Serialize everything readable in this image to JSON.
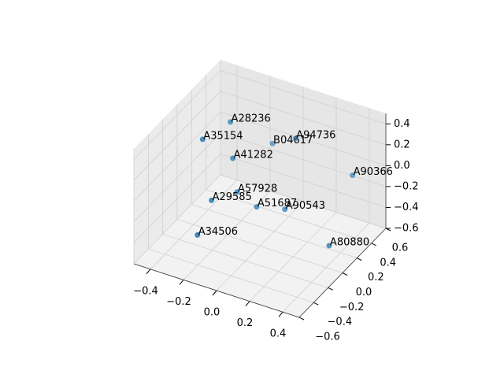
{
  "chart_data": {
    "type": "scatter3d",
    "points": {
      "labels": [
        "A28236",
        "A35154",
        "B04617",
        "A94736",
        "A41282",
        "A90366",
        "A57928",
        "A29585",
        "A51687",
        "A90543",
        "A34506",
        "A80880"
      ],
      "x": [
        -0.27,
        -0.32,
        -0.12,
        0.01,
        -0.19,
        0.39,
        -0.16,
        -0.24,
        -0.05,
        0.09,
        -0.29,
        0.41
      ],
      "y": [
        0.21,
        -0.06,
        0.45,
        0.47,
        0.06,
        0.39,
        0.05,
        -0.12,
        0.07,
        0.14,
        -0.2,
        0.02
      ],
      "z": [
        0.3,
        0.3,
        0,
        0.1,
        0.1,
        0,
        -0.2,
        -0.2,
        -0.3,
        -0.3,
        -0.5,
        -0.4
      ]
    },
    "color": "#1f77b4",
    "xlim": [
      -0.5,
      0.5
    ],
    "ylim": [
      -0.6,
      0.6
    ],
    "zlim": [
      -0.6,
      0.5
    ],
    "xticks": [
      {
        "value": -0.4,
        "label": "−0.4"
      },
      {
        "value": -0.2,
        "label": "−0.2"
      },
      {
        "value": 0,
        "label": "0.0"
      },
      0.2,
      0.4
    ],
    "yticks": [
      {
        "value": -0.6,
        "label": "−0.6"
      },
      {
        "value": -0.4,
        "label": "−0.4"
      },
      {
        "value": -0.2,
        "label": "−0.2"
      },
      {
        "value": 0,
        "label": "0.0"
      },
      0.2,
      0.4,
      0.6
    ],
    "zticks": [
      {
        "value": -0.6,
        "label": "−0.6"
      },
      {
        "value": -0.4,
        "label": "−0.4"
      },
      {
        "value": -0.2,
        "label": "−0.2"
      },
      {
        "value": 0,
        "label": "0.0"
      },
      0.2,
      0.4
    ],
    "grid": true
  }
}
